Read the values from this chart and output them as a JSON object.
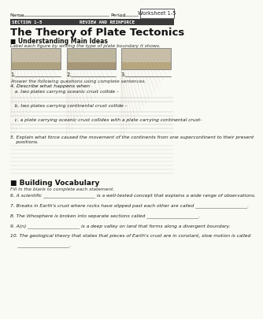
{
  "paper_color": "#fafaf5",
  "header_name_label": "Name",
  "header_period_label": "Period",
  "worksheet_box": "Worksheet 1-5",
  "section_bar_bg": "#3a3a3a",
  "title": "The Theory of Plate Tectonics",
  "subtitle": "■ Understanding Main Ideas",
  "italic_instruction": "Label each figure by writing the type of plate boundary it shows.",
  "labels_123": [
    "1.",
    "2.",
    "3."
  ],
  "answer_instruction": "Answer the following questions using complete sentences.",
  "q4_header": "4. Describe what happens when",
  "q4a": "   a. two plates carrying oceanic crust collide –",
  "q4b": "   b. two plates carrying continental crust collide –",
  "q4c": "   c. a plate carrying oceanic crust collides with a plate carrying continental crust-",
  "q5": "5. Explain what force caused the movement of the continents from one supercontinent to their present\n    positions.",
  "vocab_header": "■ Building Vocabulary",
  "vocab_instruction": "Fill in the blank to complete each statement.",
  "q6": "6. A scientific ______________________ is a well-tested concept that explains a wide range of observations.",
  "q7": "7. Breaks in Earth's crust where rocks have slipped past each other are called ______________________.",
  "q8": "8. The lithosphere is broken into separate sections called ______________________.",
  "q9": "9. A(n) ______________________ is a deep valley on land that forms along a divergent boundary.",
  "q10a": "10. The geological theory that states that pieces of Earth's crust are in constant, slow motion is called",
  "q10b": "     ______________________.",
  "fig_colors": [
    "#c8bfaa",
    "#bfb8a0",
    "#cac0aa"
  ],
  "fig_layer_colors": [
    "#b0a480",
    "#a89878",
    "#b8a880"
  ]
}
